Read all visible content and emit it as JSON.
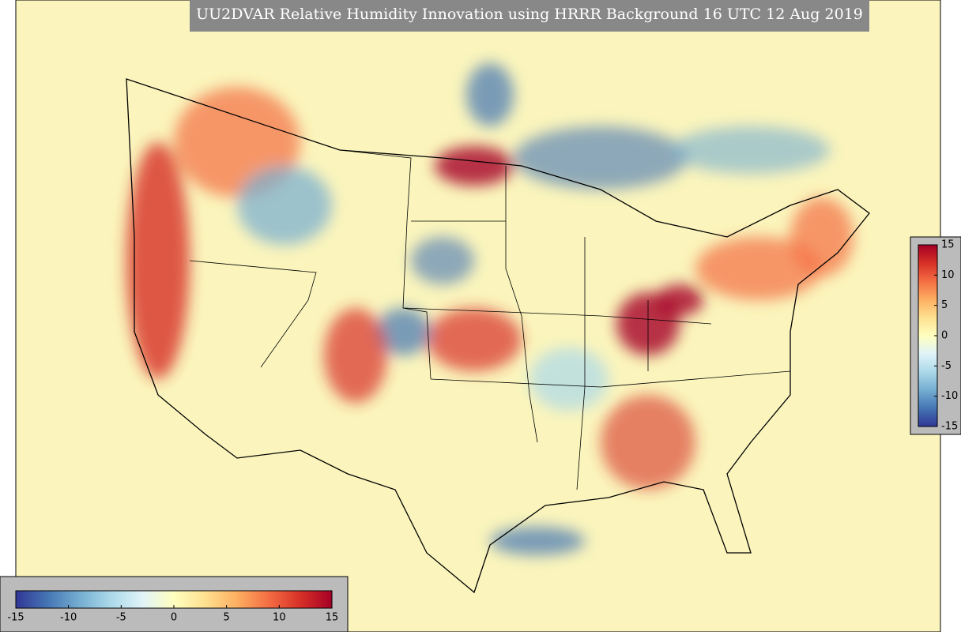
{
  "title": "UU2DVAR Relative Humidity Innovation using HRRR Background 16 UTC 12 Aug 2019",
  "colormap": [
    "#313695",
    "#4575b4",
    "#74add1",
    "#abd9e9",
    "#e0f3f8",
    "#ffffbf",
    "#fee090",
    "#fdae61",
    "#f46d43",
    "#d73027",
    "#a50026"
  ],
  "colorbars": [
    {
      "orientation": "vertical",
      "range": [
        -15,
        15
      ],
      "ticks": [
        15,
        10,
        5,
        0,
        -5,
        -10,
        -15
      ]
    },
    {
      "orientation": "horizontal",
      "range": [
        -15,
        15
      ],
      "ticks": [
        -15,
        -10,
        -5,
        0,
        5,
        10,
        15
      ]
    }
  ]
}
